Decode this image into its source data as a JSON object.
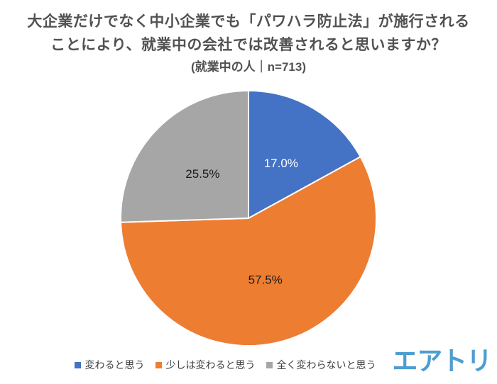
{
  "title": {
    "line1": "大企業だけでなく中小企業でも「パワハラ防止法」が施行される",
    "line2": "ことにより、就業中の会社では改善されると思いますか？",
    "subtitle": "(就業中の人｜n=713)"
  },
  "chart_data": {
    "type": "pie",
    "title": "大企業だけでなく中小企業でも「パワハラ防止法」が施行されることにより、就業中の会社では改善されると思いますか？",
    "subtitle": "(就業中の人｜n=713)",
    "sample_label": "n=713",
    "start_angle_deg": 0,
    "direction": "clockwise",
    "value_suffix": "%",
    "legend_position": "bottom",
    "slices": [
      {
        "label": "変わると思う",
        "value": 17.0,
        "display": "17.0%",
        "color": "#4472C4",
        "label_color": "#FFFFFF"
      },
      {
        "label": "少しは変わると思う",
        "value": 57.5,
        "display": "57.5%",
        "color": "#ED7D31",
        "label_color": "#1A1A1A"
      },
      {
        "label": "全く変わらないと思う",
        "value": 25.5,
        "display": "25.5%",
        "color": "#A6A6A6",
        "label_color": "#1A1A1A"
      }
    ]
  },
  "logo": {
    "text": "エアトリ",
    "color": "#4D9DD0"
  },
  "colors": {
    "title_text": "#525252",
    "legend_text": "#3F3F3F",
    "slice_border": "#FFFFFF"
  }
}
